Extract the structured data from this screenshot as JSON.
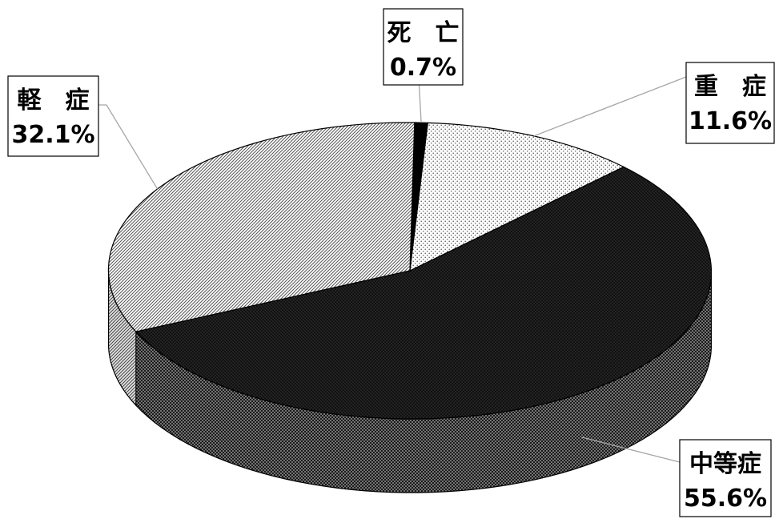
{
  "chart_data": {
    "type": "pie",
    "style": "3d",
    "title": "",
    "slices": [
      {
        "name": "死　亡",
        "value": 0.7,
        "label": "0.7%",
        "pattern": "solid-black"
      },
      {
        "name": "重　症",
        "value": 11.6,
        "label": "11.6%",
        "pattern": "sparse-dots"
      },
      {
        "name": "中等症",
        "value": 55.6,
        "label": "55.6%",
        "pattern": "dense-dots-dark"
      },
      {
        "name": "軽　症",
        "value": 32.1,
        "label": "32.1%",
        "pattern": "diagonal-hatch"
      }
    ],
    "legend": "none",
    "data_labels": "category-and-percent"
  }
}
